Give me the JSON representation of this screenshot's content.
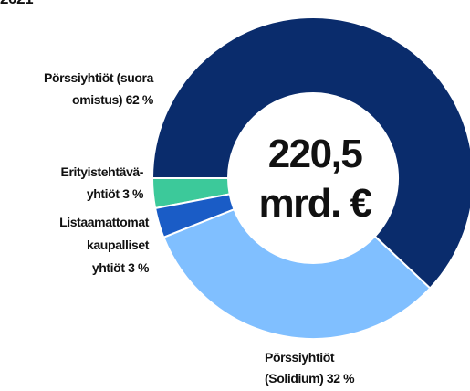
{
  "chart_data": {
    "type": "donut",
    "title": "2021",
    "center_text": [
      "220,5",
      "mrd. €"
    ],
    "categories": [
      [
        "Erityistehtävä-",
        "yhtiöt 3 %"
      ],
      [
        "Listaamattomat",
        "kaupalliset",
        "yhtiöt 3 %"
      ],
      [
        "Pörssiyhtiöt",
        "(Solidium) 32 %"
      ],
      [
        "Pörssiyhtiöt (suora",
        "omistus) 62 %"
      ]
    ],
    "values": [
      3,
      3,
      32,
      62
    ],
    "colors": [
      "#3cc99a",
      "#1a5cc6",
      "#80bfff",
      "#0a2c6c"
    ]
  }
}
